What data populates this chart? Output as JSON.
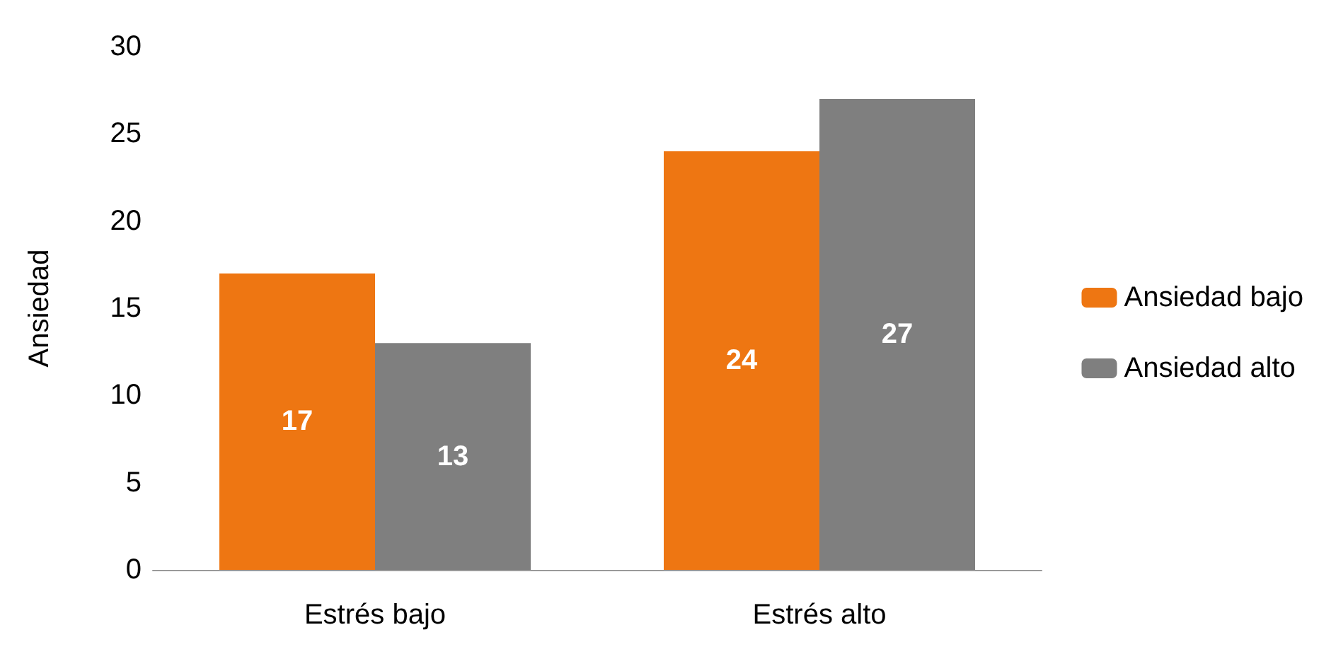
{
  "chart_data": {
    "type": "bar",
    "ylabel": "Ansiedad",
    "categories": [
      "Estrés bajo",
      "Estrés alto"
    ],
    "series": [
      {
        "name": "Ansiedad bajo",
        "color": "#ee7612",
        "values": [
          17,
          24
        ]
      },
      {
        "name": "Ansiedad alto",
        "color": "#7f7f7f",
        "values": [
          13,
          27
        ]
      }
    ],
    "ylim": [
      0,
      30
    ],
    "yticks": [
      0,
      5,
      10,
      15,
      20,
      25,
      30
    ],
    "grid": false,
    "legend": "right",
    "data_labels": true
  }
}
